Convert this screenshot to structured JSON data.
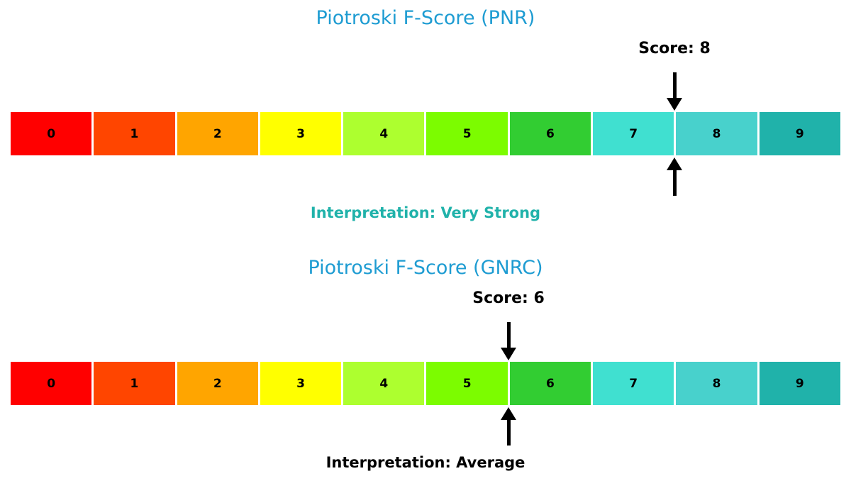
{
  "chart_data": [
    {
      "type": "gauge",
      "title": "Piotroski F-Score (PNR)",
      "title_color": "#1e9cd2",
      "score": 8,
      "score_label": "Score: 8",
      "interpretation": "Interpretation: Very Strong",
      "interpretation_color": "#20b2aa",
      "scale_min": 0,
      "scale_max": 10,
      "scale": [
        "0",
        "1",
        "2",
        "3",
        "4",
        "5",
        "6",
        "7",
        "8",
        "9"
      ],
      "segment_colors": [
        "#ff0000",
        "#ff4500",
        "#ffa500",
        "#ffff00",
        "#adff2f",
        "#7cfc00",
        "#32cd32",
        "#40e0d0",
        "#48d1cc",
        "#20b2aa"
      ],
      "pointer_color": "#000000"
    },
    {
      "type": "gauge",
      "title": "Piotroski F-Score (GNRC)",
      "title_color": "#1e9cd2",
      "score": 6,
      "score_label": "Score: 6",
      "interpretation": "Interpretation: Average",
      "interpretation_color": "#000000",
      "scale_min": 0,
      "scale_max": 10,
      "scale": [
        "0",
        "1",
        "2",
        "3",
        "4",
        "5",
        "6",
        "7",
        "8",
        "9"
      ],
      "segment_colors": [
        "#ff0000",
        "#ff4500",
        "#ffa500",
        "#ffff00",
        "#adff2f",
        "#7cfc00",
        "#32cd32",
        "#40e0d0",
        "#48d1cc",
        "#20b2aa"
      ],
      "pointer_color": "#000000"
    }
  ]
}
